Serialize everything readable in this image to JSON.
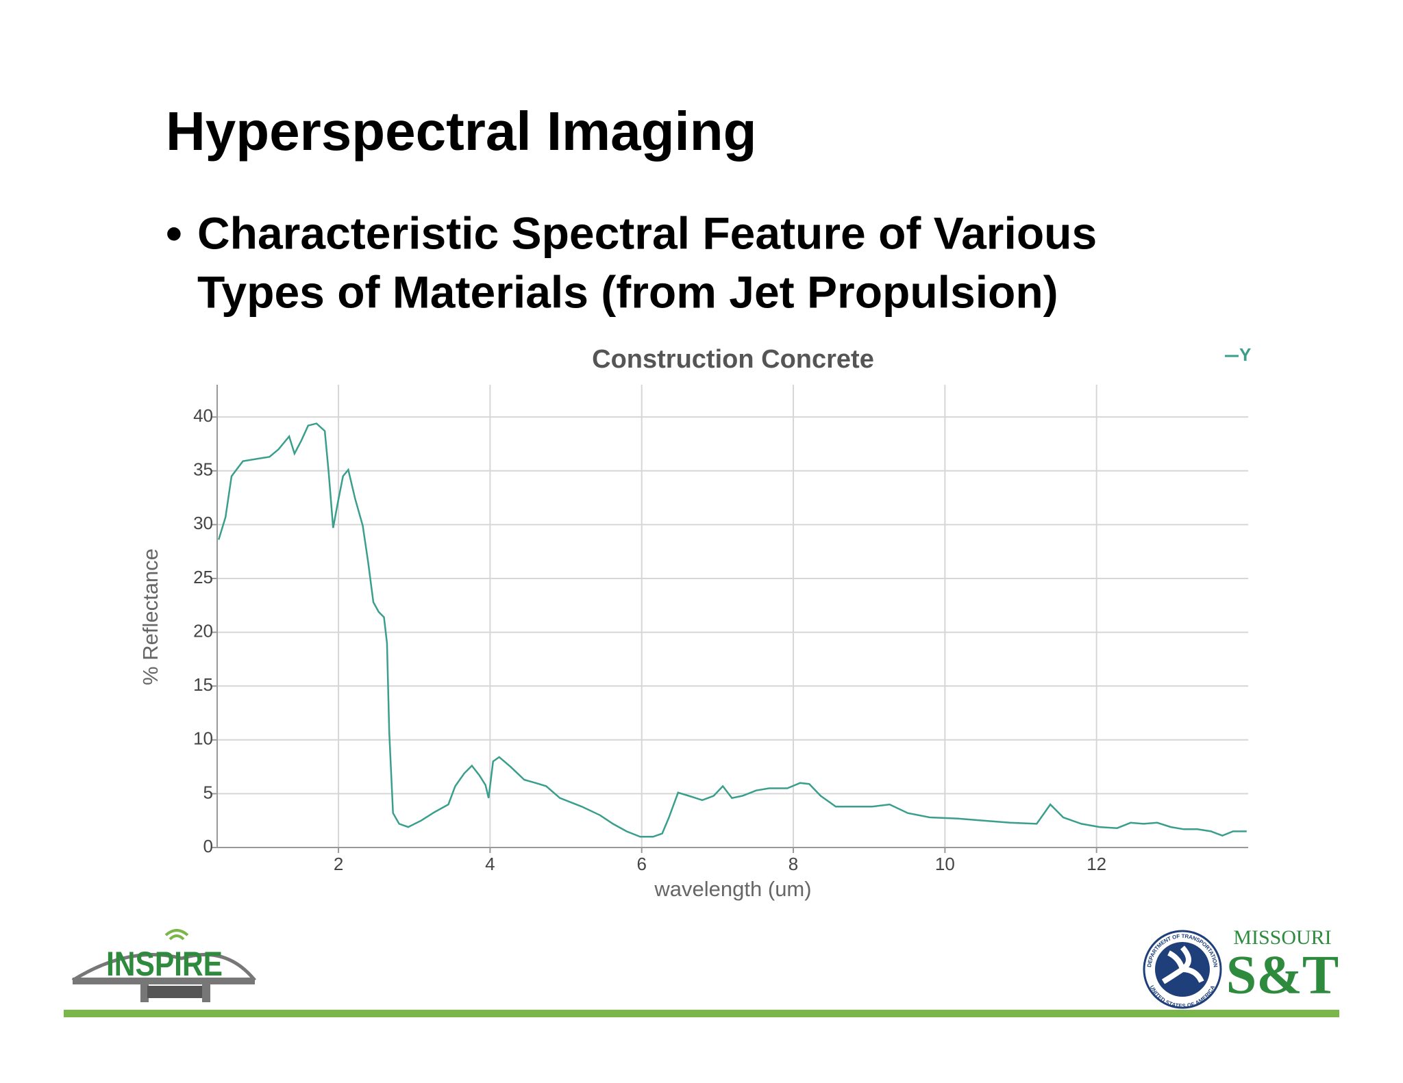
{
  "title": "Hyperspectral Imaging",
  "bullet": {
    "symbol": "•",
    "lines": [
      "Characteristic Spectral Feature of Various",
      "Types of Materials (from Jet Propulsion)"
    ]
  },
  "chart_data": {
    "type": "line",
    "title": "Construction Concrete",
    "x_label": "wavelength (um)",
    "y_label": "% Reflectance",
    "x": [
      0.42,
      0.51,
      0.59,
      0.74,
      1.09,
      1.21,
      1.35,
      1.42,
      1.51,
      1.6,
      1.71,
      1.82,
      1.87,
      1.93,
      1.99,
      2.06,
      2.13,
      2.22,
      2.32,
      2.39,
      2.46,
      2.53,
      2.6,
      2.64,
      2.67,
      2.72,
      2.8,
      2.92,
      3.09,
      3.27,
      3.45,
      3.54,
      3.66,
      3.76,
      3.86,
      3.94,
      3.98,
      4.04,
      4.12,
      4.27,
      4.45,
      4.6,
      4.74,
      4.92,
      5.21,
      5.45,
      5.62,
      5.8,
      5.98,
      6.15,
      6.27,
      6.36,
      6.48,
      6.62,
      6.8,
      6.95,
      7.07,
      7.19,
      7.33,
      7.51,
      7.68,
      7.92,
      8.09,
      8.21,
      8.36,
      8.56,
      8.74,
      9.04,
      9.27,
      9.51,
      9.8,
      10.15,
      10.51,
      10.86,
      11.21,
      11.39,
      11.56,
      11.8,
      12.04,
      12.27,
      12.45,
      12.62,
      12.8,
      12.98,
      13.15,
      13.33,
      13.51,
      13.66,
      13.8,
      13.98
    ],
    "series": [
      {
        "name": "Y",
        "color": "#3a9e8c",
        "values": [
          28.6,
          30.7,
          34.5,
          35.9,
          36.3,
          37,
          38.2,
          36.6,
          37.8,
          39.2,
          39.4,
          38.7,
          34.9,
          29.7,
          32,
          34.5,
          35.1,
          32.4,
          29.9,
          26.6,
          22.8,
          21.9,
          21.4,
          19,
          10.7,
          3.2,
          2.2,
          1.9,
          2.5,
          3.3,
          4,
          5.7,
          6.9,
          7.6,
          6.7,
          5.8,
          4.6,
          8,
          8.4,
          7.5,
          6.3,
          6,
          5.7,
          4.6,
          3.8,
          3,
          2.2,
          1.5,
          1,
          1,
          1.3,
          2.8,
          5.1,
          4.8,
          4.4,
          4.8,
          5.7,
          4.6,
          4.8,
          5.3,
          5.5,
          5.5,
          6,
          5.9,
          4.8,
          3.8,
          3.8,
          3.8,
          4,
          3.2,
          2.8,
          2.7,
          2.5,
          2.3,
          2.2,
          4,
          2.8,
          2.2,
          1.9,
          1.8,
          2.3,
          2.2,
          2.3,
          1.9,
          1.7,
          1.7,
          1.5,
          1.1,
          1.5,
          1.5
        ]
      }
    ],
    "xlim": [
      0.4,
      14
    ],
    "xticks": [
      2,
      4,
      6,
      8,
      10,
      12
    ],
    "ylim": [
      0,
      43
    ],
    "yticks": [
      0,
      5,
      10,
      15,
      20,
      25,
      30,
      35,
      40
    ],
    "grid": true,
    "legend": "top-right"
  },
  "logos": {
    "inspire": "INSPIRE",
    "dot_seal_top": "DEPARTMENT OF TRANSPORTATION",
    "dot_seal_bottom": "UNITED STATES OF AMERICA",
    "missouri": "MISSOURI",
    "st": "S&T"
  }
}
